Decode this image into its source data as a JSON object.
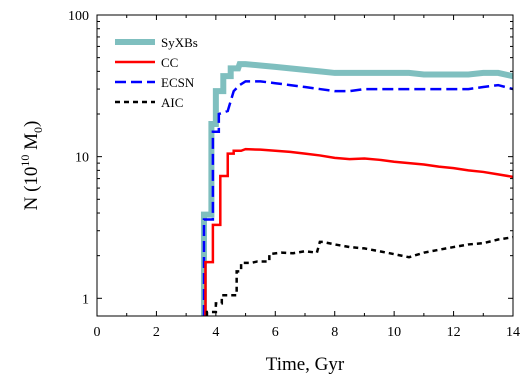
{
  "chart_data": {
    "type": "line",
    "title": "",
    "xlabel": "Time, Gyr",
    "ylabel": "N (10^10 M_0)",
    "ylabel_parts": {
      "main": "N (10",
      "exp": "10",
      "mid": " M",
      "sub": "0",
      "close": ")"
    },
    "xlim": [
      0,
      14
    ],
    "ylim": [
      0.75,
      100
    ],
    "yscale": "log",
    "x_ticks": [
      0,
      2,
      4,
      6,
      8,
      10,
      12,
      14
    ],
    "x_tick_labels": [
      "0",
      "2",
      "4",
      "6",
      "8",
      "10",
      "12",
      "14"
    ],
    "y_ticks": [
      1,
      10,
      100
    ],
    "y_tick_labels": [
      "1",
      "10",
      "100"
    ],
    "grid": false,
    "legend_position": "top-left",
    "series": [
      {
        "name": "SyXBs",
        "color": "#7fbfbf",
        "style": "solid-thick",
        "x": [
          3.6,
          3.6,
          3.85,
          3.85,
          4.0,
          4.0,
          4.25,
          4.25,
          4.5,
          4.5,
          4.75,
          4.8,
          5.0,
          5.5,
          6.0,
          6.5,
          7.0,
          7.5,
          8.0,
          8.5,
          9.0,
          9.5,
          10.0,
          10.5,
          11.0,
          11.5,
          12.0,
          12.5,
          13.0,
          13.5,
          14.0
        ],
        "y": [
          0.75,
          3.9,
          3.9,
          17,
          17,
          29,
          29,
          37,
          37,
          42,
          42,
          45,
          45,
          44,
          43,
          42,
          41,
          40,
          39,
          39,
          39,
          39,
          39,
          39,
          38,
          38,
          38,
          38,
          39,
          39,
          37
        ]
      },
      {
        "name": "CC",
        "color": "#ff0000",
        "style": "solid",
        "x": [
          3.65,
          3.65,
          3.9,
          3.9,
          4.15,
          4.15,
          4.4,
          4.4,
          4.6,
          4.6,
          4.85,
          5.0,
          5.5,
          6.0,
          6.5,
          7.0,
          7.5,
          8.0,
          8.5,
          9.0,
          9.5,
          10.0,
          10.5,
          11.0,
          11.5,
          12.0,
          12.5,
          13.0,
          13.5,
          14.0
        ],
        "y": [
          0.75,
          1.8,
          1.8,
          3.3,
          3.3,
          7.3,
          7.3,
          10.5,
          10.5,
          11.0,
          11.0,
          11.3,
          11.2,
          11.0,
          10.8,
          10.5,
          10.2,
          9.8,
          9.6,
          9.7,
          9.5,
          9.2,
          9.0,
          8.8,
          8.5,
          8.3,
          8.0,
          7.8,
          7.5,
          7.2
        ]
      },
      {
        "name": "ECSN",
        "color": "#0000ff",
        "style": "dashed",
        "x": [
          3.6,
          3.6,
          3.9,
          3.9,
          4.1,
          4.1,
          4.4,
          4.6,
          4.8,
          5.0,
          5.5,
          6.0,
          6.5,
          7.0,
          7.5,
          8.0,
          8.5,
          9.0,
          9.5,
          10.0,
          10.5,
          11.0,
          11.5,
          12.0,
          12.5,
          13.0,
          13.5,
          14.0
        ],
        "y": [
          0.75,
          3.6,
          3.6,
          15,
          15,
          20,
          21,
          29,
          32,
          34,
          34,
          33,
          32,
          31,
          30,
          29,
          29,
          30,
          30,
          30,
          30,
          30,
          30,
          30,
          30,
          31,
          32,
          30
        ]
      },
      {
        "name": "AIC",
        "color": "#000000",
        "style": "dotted",
        "x": [
          3.7,
          3.7,
          4.0,
          4.0,
          4.2,
          4.2,
          4.7,
          4.7,
          4.85,
          4.85,
          5.2,
          5.4,
          5.8,
          5.8,
          6.2,
          6.6,
          7.0,
          7.4,
          7.5,
          7.6,
          8.0,
          8.5,
          9.0,
          9.5,
          10.0,
          10.5,
          11.0,
          11.5,
          12.0,
          12.5,
          13.0,
          13.5,
          14.0
        ],
        "y": [
          0.75,
          0.8,
          0.8,
          0.92,
          0.92,
          1.05,
          1.05,
          1.55,
          1.55,
          1.78,
          1.78,
          1.82,
          1.82,
          2.05,
          2.1,
          2.08,
          2.15,
          2.1,
          2.5,
          2.5,
          2.4,
          2.3,
          2.25,
          2.15,
          2.05,
          1.95,
          2.1,
          2.2,
          2.3,
          2.4,
          2.45,
          2.6,
          2.7
        ]
      }
    ]
  }
}
